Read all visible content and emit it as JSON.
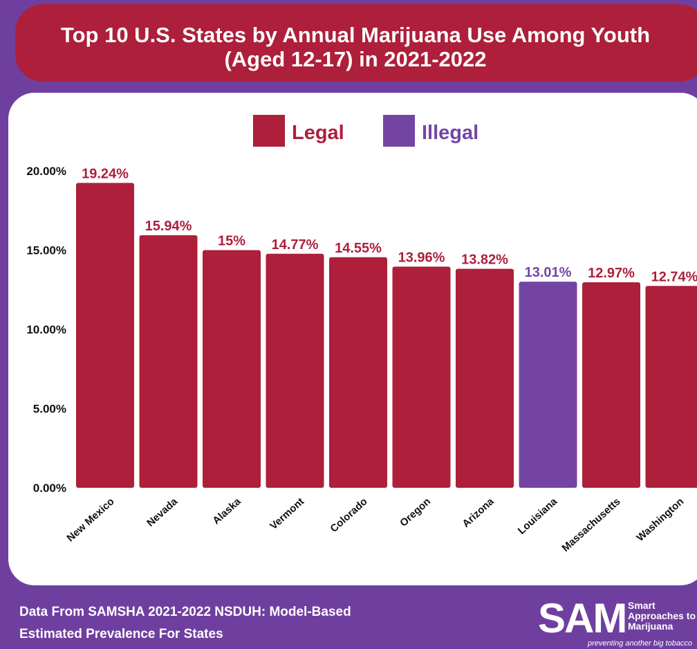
{
  "title": {
    "line1": "Top 10 U.S. States by Annual Marijuana Use Among Youth",
    "line2": "(Aged 12-17) in 2021-2022"
  },
  "chart_data": {
    "type": "bar",
    "categories": [
      "New Mexico",
      "Nevada",
      "Alaska",
      "Vermont",
      "Colorado",
      "Oregon",
      "Arizona",
      "Louisiana",
      "Massachusetts",
      "Washington"
    ],
    "values": [
      19.24,
      15.94,
      15,
      14.77,
      14.55,
      13.96,
      13.82,
      13.01,
      12.97,
      12.74
    ],
    "data_labels": [
      "19.24%",
      "15.94%",
      "15%",
      "14.77%",
      "14.55%",
      "13.96%",
      "13.82%",
      "13.01%",
      "12.97%",
      "12.74%"
    ],
    "status": [
      "Legal",
      "Legal",
      "Legal",
      "Legal",
      "Legal",
      "Legal",
      "Legal",
      "Illegal",
      "Legal",
      "Legal"
    ],
    "legend": [
      {
        "name": "Legal",
        "color": "#ad1f3a"
      },
      {
        "name": "Illegal",
        "color": "#7444a5"
      }
    ],
    "legend_position": "top-center",
    "yticks": [
      "0.00%",
      "5.00%",
      "10.00%",
      "15.00%",
      "20.00%"
    ],
    "ytick_values": [
      0,
      5,
      10,
      15,
      20
    ],
    "ylim": [
      0,
      20
    ],
    "grid": false,
    "xlabel": "",
    "ylabel": ""
  },
  "colors": {
    "legal": "#ad1f3a",
    "illegal": "#7444a5",
    "background": "#6f3fa0",
    "panel": "#ffffff",
    "axis_text": "#111111"
  },
  "footer": {
    "line1": "Data From SAMSHA 2021-2022 NSDUH: Model-Based",
    "line2": "Estimated Prevalence For States"
  },
  "logo": {
    "letters": "SAM",
    "word1": "Smart",
    "word2": "Approaches to",
    "word3": "Marijuana",
    "tagline": "preventing another big tobacco"
  }
}
